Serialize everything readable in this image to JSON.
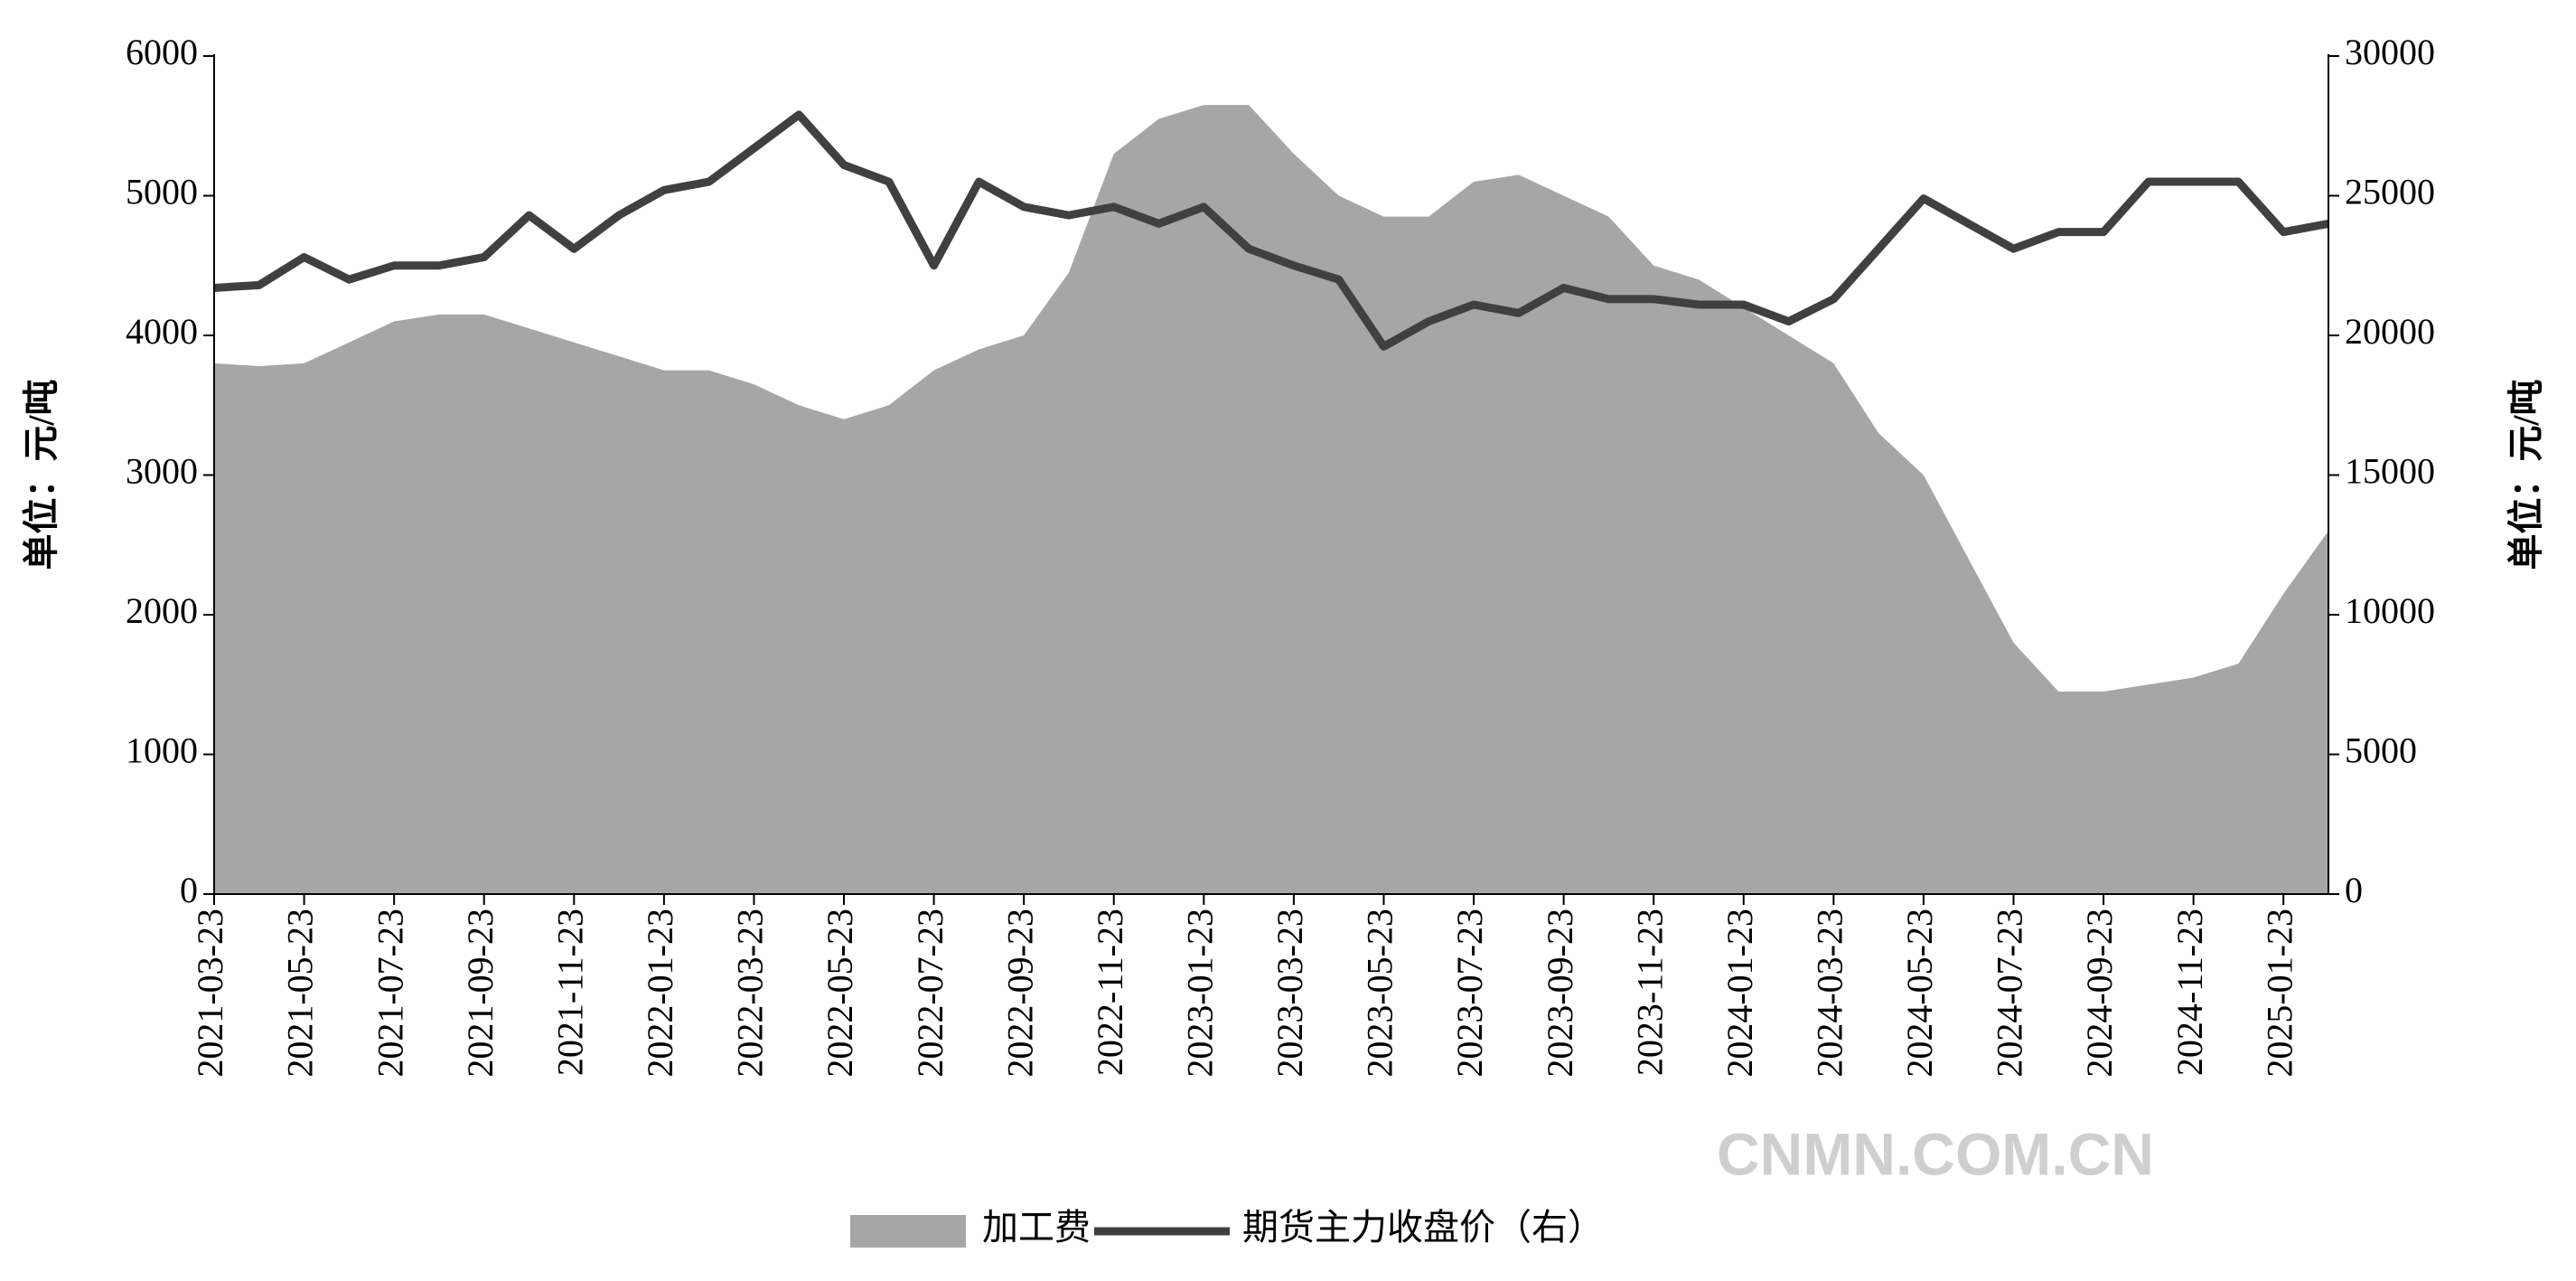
{
  "chart_data": {
    "type": "combo",
    "ylabel": "单位：元/吨",
    "y2label": "单位：元/吨",
    "watermark": "CNMN.COM.CN",
    "categories": [
      "2021-03-23",
      null,
      "2021-05-23",
      null,
      "2021-07-23",
      null,
      "2021-09-23",
      null,
      "2021-11-23",
      null,
      "2022-01-23",
      null,
      "2022-03-23",
      null,
      "2022-05-23",
      null,
      "2022-07-23",
      null,
      "2022-09-23",
      null,
      "2022-11-23",
      null,
      "2023-01-23",
      null,
      "2023-03-23",
      null,
      "2023-05-23",
      null,
      "2023-07-23",
      null,
      "2023-09-23",
      null,
      "2023-11-23",
      null,
      "2024-01-23",
      null,
      "2024-03-23",
      null,
      "2024-05-23",
      null,
      "2024-07-23",
      null,
      "2024-09-23",
      null,
      "2024-11-23",
      null,
      "2025-01-23",
      null
    ],
    "series": [
      {
        "name": "加工费",
        "type": "area",
        "color": "#a6a6a6",
        "values": [
          3800,
          3780,
          3800,
          3950,
          4100,
          4150,
          4150,
          4050,
          3950,
          3850,
          3750,
          3750,
          3650,
          3500,
          3400,
          3500,
          3750,
          3900,
          4000,
          4450,
          5300,
          5550,
          5650,
          5650,
          5300,
          5000,
          4850,
          4850,
          5100,
          5150,
          5000,
          4850,
          4500,
          4400,
          4200,
          4000,
          3800,
          3300,
          3000,
          2400,
          1800,
          1450,
          1450,
          1500,
          1550,
          1650,
          2150,
          2600
        ]
      },
      {
        "name": "期货主力收盘价（右）",
        "type": "line",
        "axis": "y2",
        "color": "#404040",
        "values": [
          21700,
          21800,
          22800,
          22000,
          22500,
          22500,
          22800,
          24300,
          23100,
          24300,
          25200,
          25500,
          26700,
          27900,
          26100,
          25500,
          22500,
          25500,
          24600,
          24300,
          24600,
          24000,
          24600,
          23100,
          22500,
          22000,
          19600,
          20500,
          21100,
          20800,
          21700,
          21300,
          21300,
          21100,
          21100,
          20500,
          21300,
          23100,
          24900,
          24000,
          23100,
          23700,
          23700,
          25500,
          25500,
          25500,
          23700,
          24000
        ]
      }
    ],
    "ylim": [
      0,
      6000
    ],
    "yticks": [
      0,
      1000,
      2000,
      3000,
      4000,
      5000,
      6000
    ],
    "y2lim": [
      0,
      30000
    ],
    "y2ticks": [
      0,
      5000,
      10000,
      15000,
      20000,
      25000,
      30000
    ],
    "legend": "bottom"
  }
}
